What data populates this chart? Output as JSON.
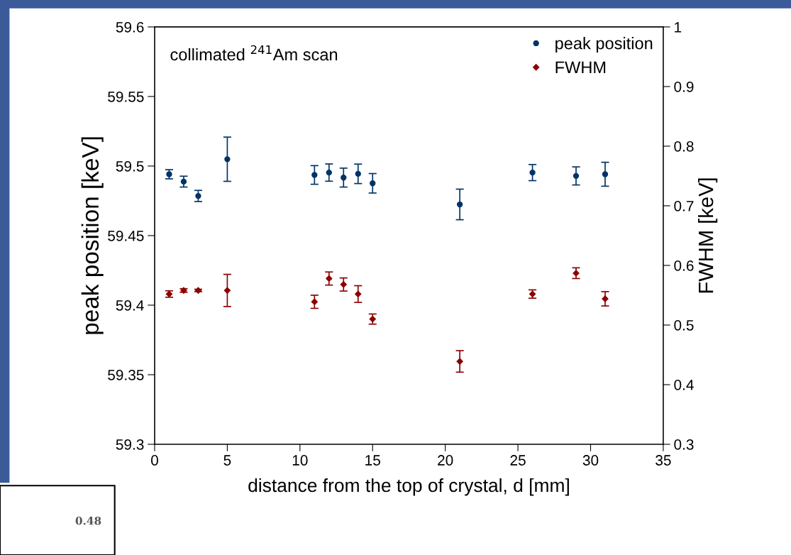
{
  "chart_data": {
    "type": "scatter",
    "xlabel": "distance from the top of crystal, d [mm]",
    "ylabel": "peak position [keV]",
    "y2label": "FWHM [keV]",
    "annotations": [
      "collimated $^{241}$Am scan",
      "0.48"
    ],
    "x": [
      1,
      2,
      3,
      5,
      11,
      12,
      13,
      14,
      15,
      21,
      26,
      29,
      31
    ],
    "series": [
      {
        "name": "peak position",
        "color": "#003366",
        "marker": "circle",
        "axis": "y",
        "values": [
          59.4941,
          59.4888,
          59.4785,
          59.5049,
          59.4936,
          59.4953,
          59.4917,
          59.4944,
          59.4876,
          59.4724,
          59.4953,
          59.4929,
          59.4941
        ],
        "errors": [
          0.0033,
          0.0039,
          0.004,
          0.0159,
          0.0067,
          0.0062,
          0.0068,
          0.007,
          0.007,
          0.011,
          0.0058,
          0.0065,
          0.0086
        ]
      },
      {
        "name": "FWHM",
        "color": "#8b0000",
        "marker": "diamond",
        "axis": "y2",
        "values": [
          0.552,
          0.558,
          0.558,
          0.558,
          0.539,
          0.578,
          0.568,
          0.552,
          0.51,
          0.439,
          0.552,
          0.587,
          0.544
        ],
        "errors": [
          0.0054,
          0.003,
          0.002,
          0.027,
          0.011,
          0.011,
          0.011,
          0.014,
          0.0085,
          0.018,
          0.007,
          0.009,
          0.012
        ]
      }
    ],
    "xlim": [
      0,
      35
    ],
    "xticks": [
      0,
      5,
      10,
      15,
      20,
      25,
      30,
      35
    ],
    "ylim": [
      59.3,
      59.6
    ],
    "yticks": [
      59.3,
      59.35,
      59.4,
      59.45,
      59.5,
      59.55,
      59.6
    ],
    "y2lim": [
      0.3,
      1
    ],
    "y2ticks": [
      0.3,
      0.4,
      0.5,
      0.6,
      0.7,
      0.8,
      0.9,
      1
    ],
    "legend": "top right",
    "grid": false
  }
}
